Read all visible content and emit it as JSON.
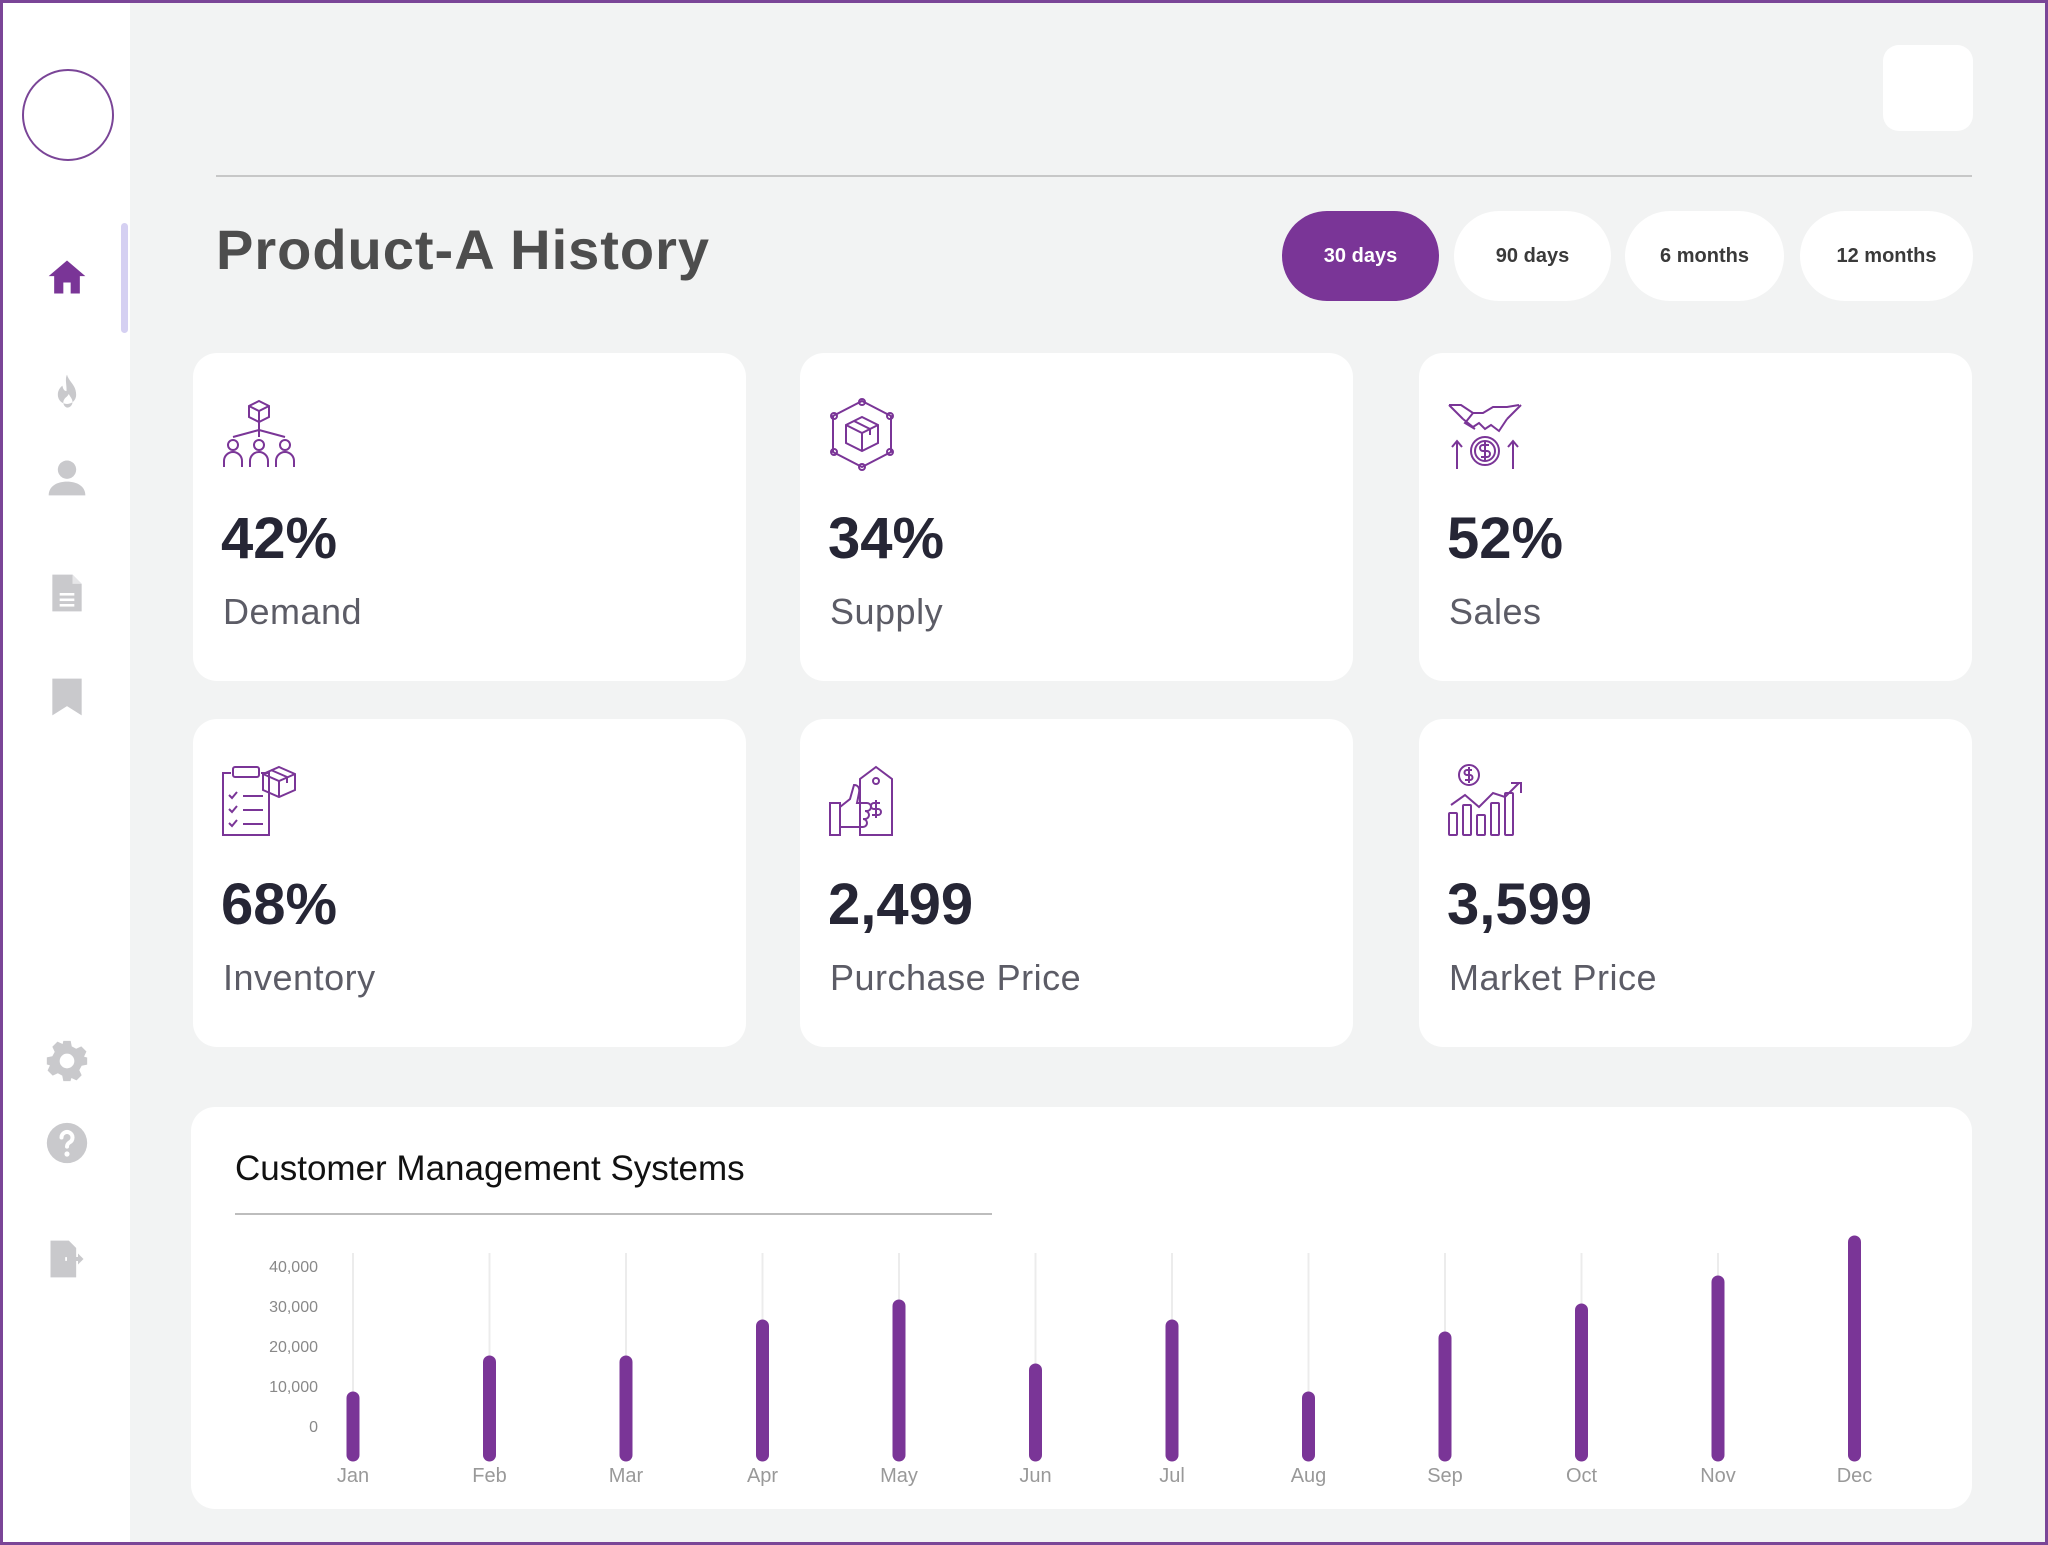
{
  "header": {
    "title": "Product-A History"
  },
  "ranges": [
    {
      "label": "30 days",
      "active": true
    },
    {
      "label": "90 days",
      "active": false
    },
    {
      "label": "6 months",
      "active": false
    },
    {
      "label": "12 months",
      "active": false
    }
  ],
  "sidebar": {
    "items": [
      {
        "name": "home-icon",
        "active": true
      },
      {
        "name": "fire-icon",
        "active": false
      },
      {
        "name": "user-icon",
        "active": false
      },
      {
        "name": "document-icon",
        "active": false
      },
      {
        "name": "bookmark-icon",
        "active": false
      },
      {
        "name": "gear-icon",
        "active": false
      },
      {
        "name": "help-icon",
        "active": false
      },
      {
        "name": "logout-icon",
        "active": false
      }
    ]
  },
  "stats": [
    {
      "value": "42%",
      "label": "Demand",
      "icon": "demand-network-icon"
    },
    {
      "value": "34%",
      "label": "Supply",
      "icon": "supply-box-icon"
    },
    {
      "value": "52%",
      "label": "Sales",
      "icon": "sales-handshake-icon"
    },
    {
      "value": "68%",
      "label": "Inventory",
      "icon": "inventory-clipboard-icon"
    },
    {
      "value": "2,499",
      "label": "Purchase Price",
      "icon": "purchase-price-tag-icon"
    },
    {
      "value": "3,599",
      "label": "Market Price",
      "icon": "market-price-chart-icon"
    }
  ],
  "colors": {
    "accent": "#7a3597",
    "background": "#f2f3f3",
    "card": "#ffffff"
  },
  "chart_data": {
    "type": "bar",
    "title": "Customer Management Systems",
    "categories": [
      "Jan",
      "Feb",
      "Mar",
      "Apr",
      "May",
      "Jun",
      "Jul",
      "Aug",
      "Sep",
      "Oct",
      "Nov",
      "Dec"
    ],
    "values": [
      7000,
      16000,
      16000,
      25000,
      30000,
      14000,
      25000,
      7000,
      22000,
      29000,
      36000,
      46000
    ],
    "yticks": [
      "0",
      "10,000",
      "20,000",
      "30,000",
      "40,000"
    ],
    "ytick_values": [
      0,
      10000,
      20000,
      30000,
      40000
    ],
    "xlabel": "",
    "ylabel": "",
    "grid": "vertical"
  }
}
